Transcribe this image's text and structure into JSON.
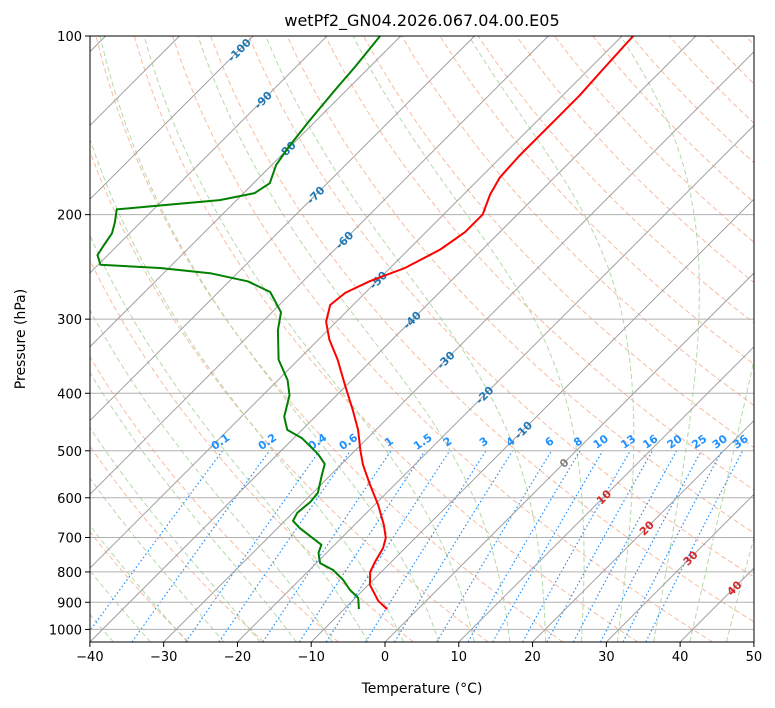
{
  "chart_data": {
    "type": "line",
    "subtype": "skew-t log-p",
    "title": "wetPf2_GN04.2026.067.04.00.E05",
    "xlabel": "Temperature (°C)",
    "ylabel": "Pressure (hPa)",
    "xlim": [
      -40,
      50
    ],
    "ylim": [
      1050,
      100
    ],
    "xticks": [
      "−40",
      "−30",
      "−20",
      "−10",
      "0",
      "10",
      "20",
      "30",
      "40",
      "50"
    ],
    "xtick_values": [
      -40,
      -30,
      -20,
      -10,
      0,
      10,
      20,
      30,
      40,
      50
    ],
    "yticks": [
      "100",
      "200",
      "300",
      "400",
      "500",
      "600",
      "700",
      "800",
      "900",
      "1000"
    ],
    "ytick_values": [
      100,
      200,
      300,
      400,
      500,
      600,
      700,
      800,
      900,
      1000
    ],
    "grid": true,
    "isotherm_labels": [
      "-100",
      "-90",
      "-80",
      "-70",
      "-60",
      "-50",
      "-40",
      "-30",
      "-20",
      "-10",
      "0",
      "10",
      "20",
      "30",
      "40"
    ],
    "isotherm_label_values": [
      -100,
      -90,
      -80,
      -70,
      -60,
      -50,
      -40,
      -30,
      -20,
      -10,
      0,
      10,
      20,
      30,
      40
    ],
    "mixing_ratio_labels": [
      "0.1",
      "0.2",
      "0.4",
      "0.6",
      "1",
      "1.5",
      "2",
      "3",
      "4",
      "6",
      "8",
      "10",
      "13",
      "16",
      "20",
      "25",
      "30",
      "36"
    ],
    "mixing_ratio_values": [
      0.1,
      0.2,
      0.4,
      0.6,
      1,
      1.5,
      2,
      3,
      4,
      6,
      8,
      10,
      13,
      16,
      20,
      25,
      30,
      36
    ],
    "colors": {
      "temperature": "#ff0000",
      "dewpoint": "#008000",
      "isotherm": "#b0b0b0",
      "dry_adiabat": "#f4a582",
      "moist_adiabat": "#a6d39a",
      "mixing_ratio": "#1e90ff",
      "label_negative": "#1f77b4",
      "label_zero": "#808080",
      "label_positive": "#d62728"
    },
    "series": [
      {
        "name": "Temperature",
        "pressure": [
          924,
          895,
          841,
          800,
          770,
          729,
          701,
          667,
          617,
          571,
          528,
          498,
          461,
          427,
          387,
          351,
          325,
          303,
          284,
          271,
          259,
          246,
          229,
          214,
          200,
          185,
          173,
          159,
          139,
          126,
          113,
          100
        ],
        "temperature": [
          -4.2,
          -6.5,
          -9.8,
          -11.5,
          -12.2,
          -13.0,
          -14.0,
          -16.0,
          -19.5,
          -23.3,
          -27.0,
          -29.4,
          -32.4,
          -35.8,
          -40.3,
          -44.7,
          -48.5,
          -51.4,
          -53.1,
          -52.7,
          -51.0,
          -48.0,
          -45.7,
          -44.7,
          -44.7,
          -46.4,
          -47.4,
          -47.7,
          -47.7,
          -47.7,
          -48.1,
          -48.5
        ]
      },
      {
        "name": "Dewpoint",
        "pressure": [
          924,
          885,
          858,
          825,
          794,
          773,
          743,
          720,
          675,
          656,
          636,
          610,
          589,
          549,
          526,
          506,
          476,
          461,
          438,
          403,
          380,
          351,
          313,
          292,
          270,
          259,
          251,
          246,
          243,
          234,
          225,
          215,
          206,
          196,
          193,
          189,
          184,
          177,
          165,
          153,
          139,
          123,
          113,
          100
        ],
        "temperature": [
          -8.0,
          -9.6,
          -11.8,
          -14.1,
          -16.8,
          -19.5,
          -21.1,
          -21.8,
          -27.0,
          -28.9,
          -29.4,
          -29.1,
          -29.3,
          -31.2,
          -32.3,
          -34.6,
          -38.9,
          -42.0,
          -44.2,
          -46.4,
          -48.7,
          -52.7,
          -56.8,
          -58.8,
          -63.0,
          -67.5,
          -73.7,
          -81.2,
          -89.7,
          -91.4,
          -91.9,
          -92.4,
          -93.5,
          -95.0,
          -89.7,
          -82.3,
          -78.5,
          -77.8,
          -79.4,
          -80.2,
          -80.9,
          -81.6,
          -82.0,
          -82.8
        ]
      }
    ]
  }
}
